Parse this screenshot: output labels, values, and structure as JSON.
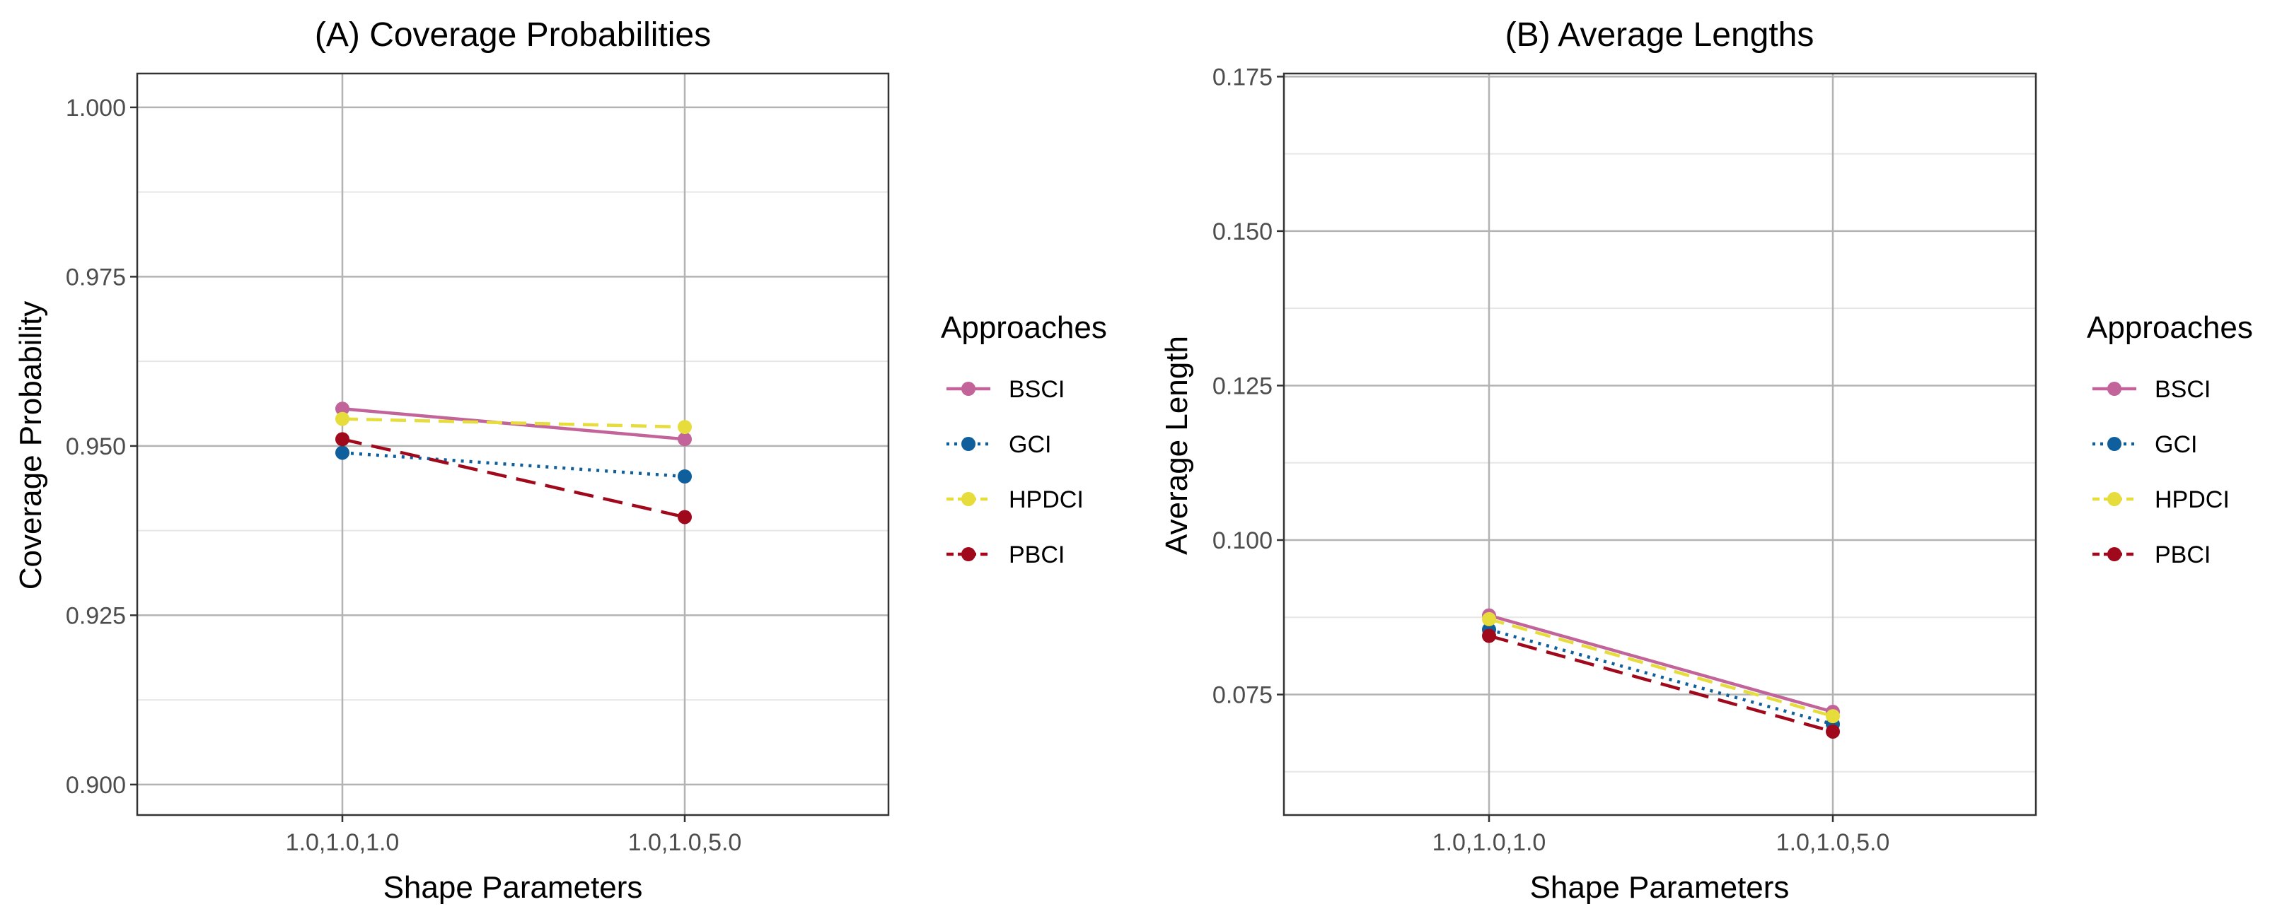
{
  "chart_data": [
    {
      "type": "line",
      "title": "(A) Coverage Probabilities",
      "xlabel": "Shape Parameters",
      "ylabel": "Coverage Probability",
      "categories": [
        "1.0,1.0,1.0",
        "1.0,1.0,5.0"
      ],
      "ylim": [
        0.8955,
        1.005
      ],
      "yticks": [
        0.9,
        0.925,
        0.95,
        0.975,
        1.0
      ],
      "ytick_labels": [
        "0.900",
        "0.925",
        "0.950",
        "0.975",
        "1.000"
      ],
      "grid": true,
      "series": [
        {
          "name": "BSCI",
          "values": [
            0.9555,
            0.951
          ]
        },
        {
          "name": "GCI",
          "values": [
            0.949,
            0.9455
          ]
        },
        {
          "name": "HPDCI",
          "values": [
            0.954,
            0.9528
          ]
        },
        {
          "name": "PBCI",
          "values": [
            0.951,
            0.9395
          ]
        }
      ],
      "legend": {
        "title": "Approaches",
        "position": "right"
      }
    },
    {
      "type": "line",
      "title": "(B) Average Lengths",
      "xlabel": "Shape Parameters",
      "ylabel": "Average Length",
      "categories": [
        "1.0,1.0,1.0",
        "1.0,1.0,5.0"
      ],
      "ylim": [
        0.0555,
        0.1755
      ],
      "yticks": [
        0.075,
        0.1,
        0.125,
        0.15,
        0.175
      ],
      "ytick_labels": [
        "0.075",
        "0.100",
        "0.125",
        "0.150",
        "0.175"
      ],
      "grid": true,
      "series": [
        {
          "name": "BSCI",
          "values": [
            0.0878,
            0.0722
          ]
        },
        {
          "name": "GCI",
          "values": [
            0.0855,
            0.0702
          ]
        },
        {
          "name": "HPDCI",
          "values": [
            0.0872,
            0.0715
          ]
        },
        {
          "name": "PBCI",
          "values": [
            0.0845,
            0.069
          ]
        }
      ],
      "legend": {
        "title": "Approaches",
        "position": "right"
      }
    }
  ],
  "series_styles": [
    {
      "name": "BSCI",
      "color": "#c2639a",
      "dash": "solid"
    },
    {
      "name": "GCI",
      "color": "#0e5f9c",
      "dash": "dotted"
    },
    {
      "name": "HPDCI",
      "color": "#e6dc3c",
      "dash": "dashed"
    },
    {
      "name": "PBCI",
      "color": "#a0091c",
      "dash": "longdash"
    }
  ]
}
